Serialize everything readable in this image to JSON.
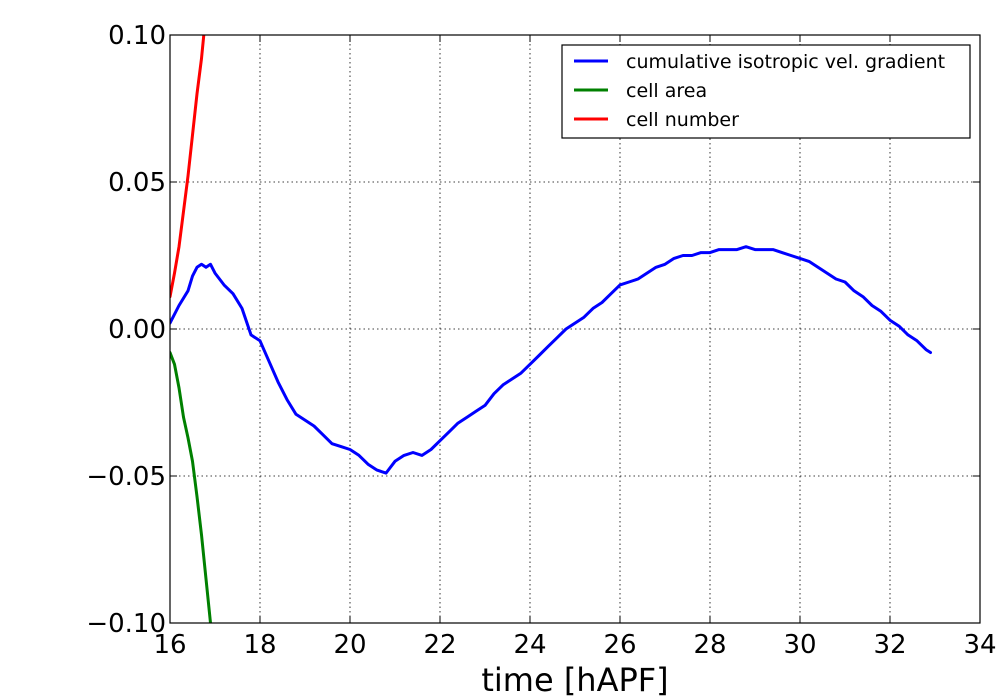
{
  "chart_data": {
    "type": "line",
    "title": "",
    "xlabel": "time [hAPF]",
    "ylabel": "",
    "xlim": [
      16,
      34
    ],
    "ylim": [
      -0.1,
      0.1
    ],
    "x_ticks": [
      "16",
      "18",
      "20",
      "22",
      "24",
      "26",
      "28",
      "30",
      "32",
      "34"
    ],
    "y_ticks": [
      "−0.10",
      "−0.05",
      "0.00",
      "0.05",
      "0.10"
    ],
    "grid": true,
    "legend_position": "top-right",
    "series": [
      {
        "name": "cumulative isotropic vel. gradient",
        "color": "#0000ff",
        "x": [
          16.0,
          16.2,
          16.4,
          16.5,
          16.6,
          16.7,
          16.8,
          16.9,
          17.0,
          17.2,
          17.4,
          17.6,
          17.8,
          18.0,
          18.2,
          18.4,
          18.6,
          18.8,
          19.0,
          19.2,
          19.4,
          19.6,
          19.8,
          20.0,
          20.2,
          20.4,
          20.6,
          20.8,
          21.0,
          21.2,
          21.4,
          21.6,
          21.8,
          22.0,
          22.2,
          22.4,
          22.6,
          22.8,
          23.0,
          23.2,
          23.4,
          23.6,
          23.8,
          24.0,
          24.2,
          24.4,
          24.6,
          24.8,
          25.0,
          25.2,
          25.4,
          25.6,
          25.8,
          26.0,
          26.2,
          26.4,
          26.6,
          26.8,
          27.0,
          27.2,
          27.4,
          27.6,
          27.8,
          28.0,
          28.2,
          28.4,
          28.6,
          28.8,
          29.0,
          29.2,
          29.4,
          29.6,
          29.8,
          30.0,
          30.2,
          30.4,
          30.6,
          30.8,
          31.0,
          31.2,
          31.4,
          31.6,
          31.8,
          32.0,
          32.2,
          32.4,
          32.6,
          32.8,
          32.9
        ],
        "y": [
          0.002,
          0.008,
          0.013,
          0.018,
          0.021,
          0.022,
          0.021,
          0.022,
          0.019,
          0.015,
          0.012,
          0.007,
          -0.002,
          -0.004,
          -0.011,
          -0.018,
          -0.024,
          -0.029,
          -0.031,
          -0.033,
          -0.036,
          -0.039,
          -0.04,
          -0.041,
          -0.043,
          -0.046,
          -0.048,
          -0.049,
          -0.045,
          -0.043,
          -0.042,
          -0.043,
          -0.041,
          -0.038,
          -0.035,
          -0.032,
          -0.03,
          -0.028,
          -0.026,
          -0.022,
          -0.019,
          -0.017,
          -0.015,
          -0.012,
          -0.009,
          -0.006,
          -0.003,
          0.0,
          0.002,
          0.004,
          0.007,
          0.009,
          0.012,
          0.015,
          0.016,
          0.017,
          0.019,
          0.021,
          0.022,
          0.024,
          0.025,
          0.025,
          0.026,
          0.026,
          0.027,
          0.027,
          0.027,
          0.028,
          0.027,
          0.027,
          0.027,
          0.026,
          0.025,
          0.024,
          0.023,
          0.021,
          0.019,
          0.017,
          0.016,
          0.013,
          0.011,
          0.008,
          0.006,
          0.003,
          0.001,
          -0.002,
          -0.004,
          -0.007,
          -0.008
        ]
      },
      {
        "name": "cell area",
        "color": "#008000",
        "x": [
          16.0,
          16.1,
          16.2,
          16.3,
          16.4,
          16.5,
          16.6,
          16.7,
          16.8,
          16.9
        ],
        "y": [
          -0.008,
          -0.012,
          -0.02,
          -0.03,
          -0.037,
          -0.045,
          -0.057,
          -0.07,
          -0.085,
          -0.1
        ]
      },
      {
        "name": "cell number",
        "color": "#ff0000",
        "x": [
          16.0,
          16.1,
          16.2,
          16.3,
          16.4,
          16.5,
          16.6,
          16.7,
          16.75
        ],
        "y": [
          0.011,
          0.019,
          0.028,
          0.04,
          0.052,
          0.066,
          0.08,
          0.092,
          0.1
        ]
      }
    ]
  }
}
